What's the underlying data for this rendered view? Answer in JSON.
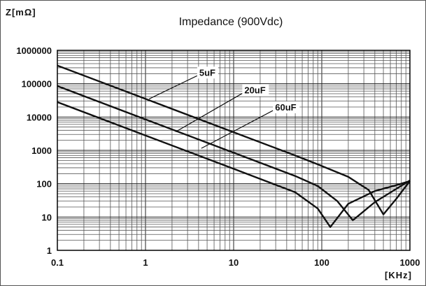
{
  "chart_data": {
    "type": "line",
    "title": "Impedance (900Vdc)",
    "ylabel": "Z[mΩ]",
    "xlabel": "[KHz]",
    "x_scale": "log",
    "y_scale": "log",
    "xlim": [
      0.1,
      1000
    ],
    "ylim": [
      1,
      1000000
    ],
    "x_ticks": [
      0.1,
      1,
      10,
      100,
      1000
    ],
    "x_tick_labels": [
      "0.1",
      "1",
      "10",
      "100",
      "1000"
    ],
    "y_ticks": [
      1,
      10,
      100,
      1000,
      10000,
      100000,
      1000000
    ],
    "y_tick_labels": [
      "1",
      "10",
      "100",
      "1000",
      "10000",
      "100000",
      "1000000"
    ],
    "grid": true,
    "series": [
      {
        "name": "5uF",
        "x": [
          0.1,
          1,
          10,
          50,
          90,
          200,
          340,
          500,
          700,
          1000
        ],
        "y": [
          350000,
          35000,
          3500,
          700,
          380,
          160,
          65,
          12,
          35,
          120
        ]
      },
      {
        "name": "20uF",
        "x": [
          0.1,
          1,
          10,
          50,
          90,
          150,
          225,
          400,
          700,
          1000
        ],
        "y": [
          85000,
          8500,
          850,
          170,
          85,
          30,
          8,
          28,
          70,
          125
        ]
      },
      {
        "name": "60uF",
        "x": [
          0.1,
          1,
          10,
          50,
          90,
          125,
          200,
          400,
          700,
          1000
        ],
        "y": [
          28000,
          2800,
          280,
          55,
          18,
          5,
          25,
          60,
          90,
          120
        ]
      }
    ]
  }
}
